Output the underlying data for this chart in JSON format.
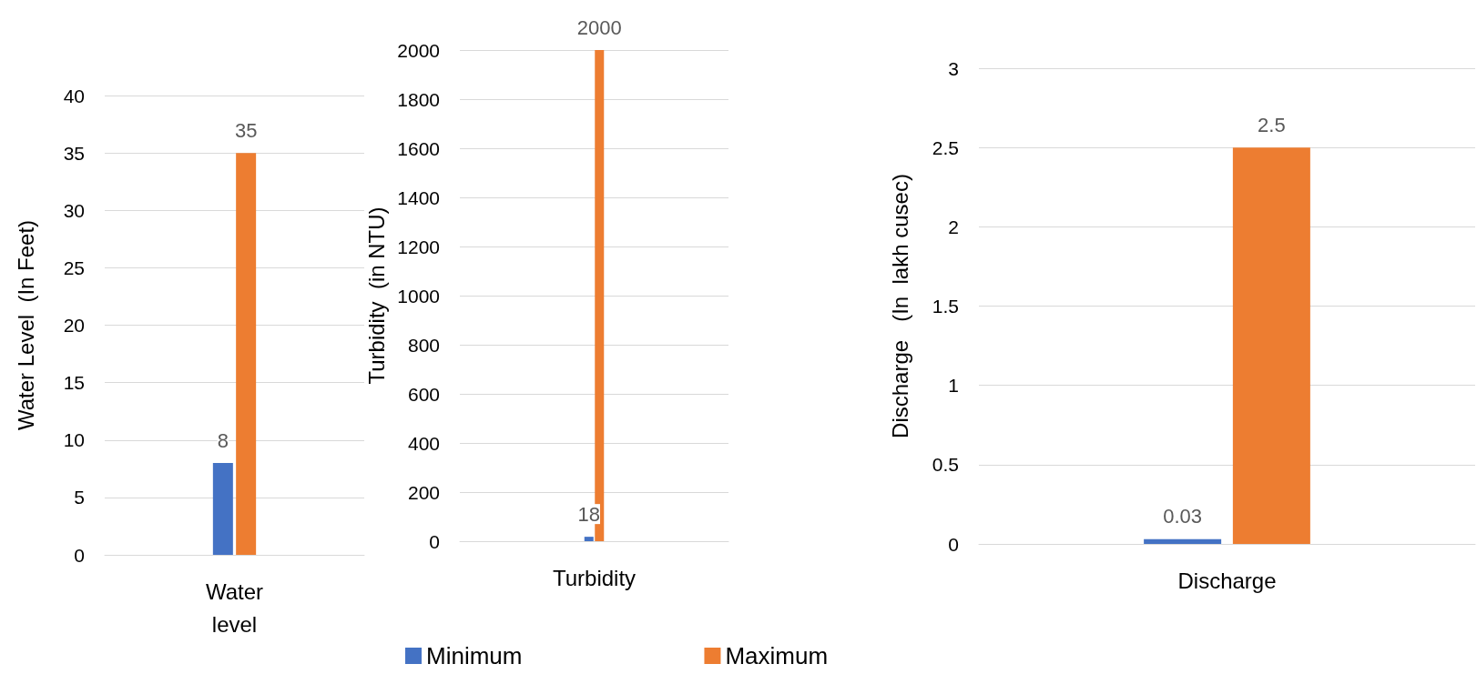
{
  "chart_data": [
    {
      "type": "bar",
      "categories": [
        "Water\nlevel"
      ],
      "ylabel": "Water Level  (In Feet)",
      "ylim": [
        0,
        40
      ],
      "yticks": [
        0,
        5,
        10,
        15,
        20,
        25,
        30,
        35,
        40
      ],
      "grid": "y",
      "data_labels": true,
      "series": [
        {
          "color": "#4472c4",
          "values": [
            8
          ]
        },
        {
          "color": "#ed7d31",
          "values": [
            35
          ]
        }
      ]
    },
    {
      "type": "bar",
      "categories": [
        "Turbidity"
      ],
      "ylabel": "Turbidity  (in NTU)",
      "ylim": [
        0,
        2000
      ],
      "yticks": [
        0,
        200,
        400,
        600,
        800,
        1000,
        1200,
        1400,
        1600,
        1800,
        2000
      ],
      "grid": "y",
      "data_labels": true,
      "legend": "bottom",
      "series": [
        {
          "name": "Minimum",
          "color": "#4472c4",
          "values": [
            18
          ]
        },
        {
          "name": "Maximum",
          "color": "#ed7d31",
          "values": [
            2000
          ]
        }
      ]
    },
    {
      "type": "bar",
      "categories": [
        "Discharge"
      ],
      "ylabel": "Discharge   (In  lakh cusec)",
      "ylim": [
        0,
        3
      ],
      "yticks": [
        0,
        0.5,
        1,
        1.5,
        2,
        2.5,
        3
      ],
      "grid": "y",
      "data_labels": true,
      "series": [
        {
          "color": "#4472c4",
          "values": [
            0.03
          ]
        },
        {
          "color": "#ed7d31",
          "values": [
            2.5
          ]
        }
      ]
    }
  ]
}
